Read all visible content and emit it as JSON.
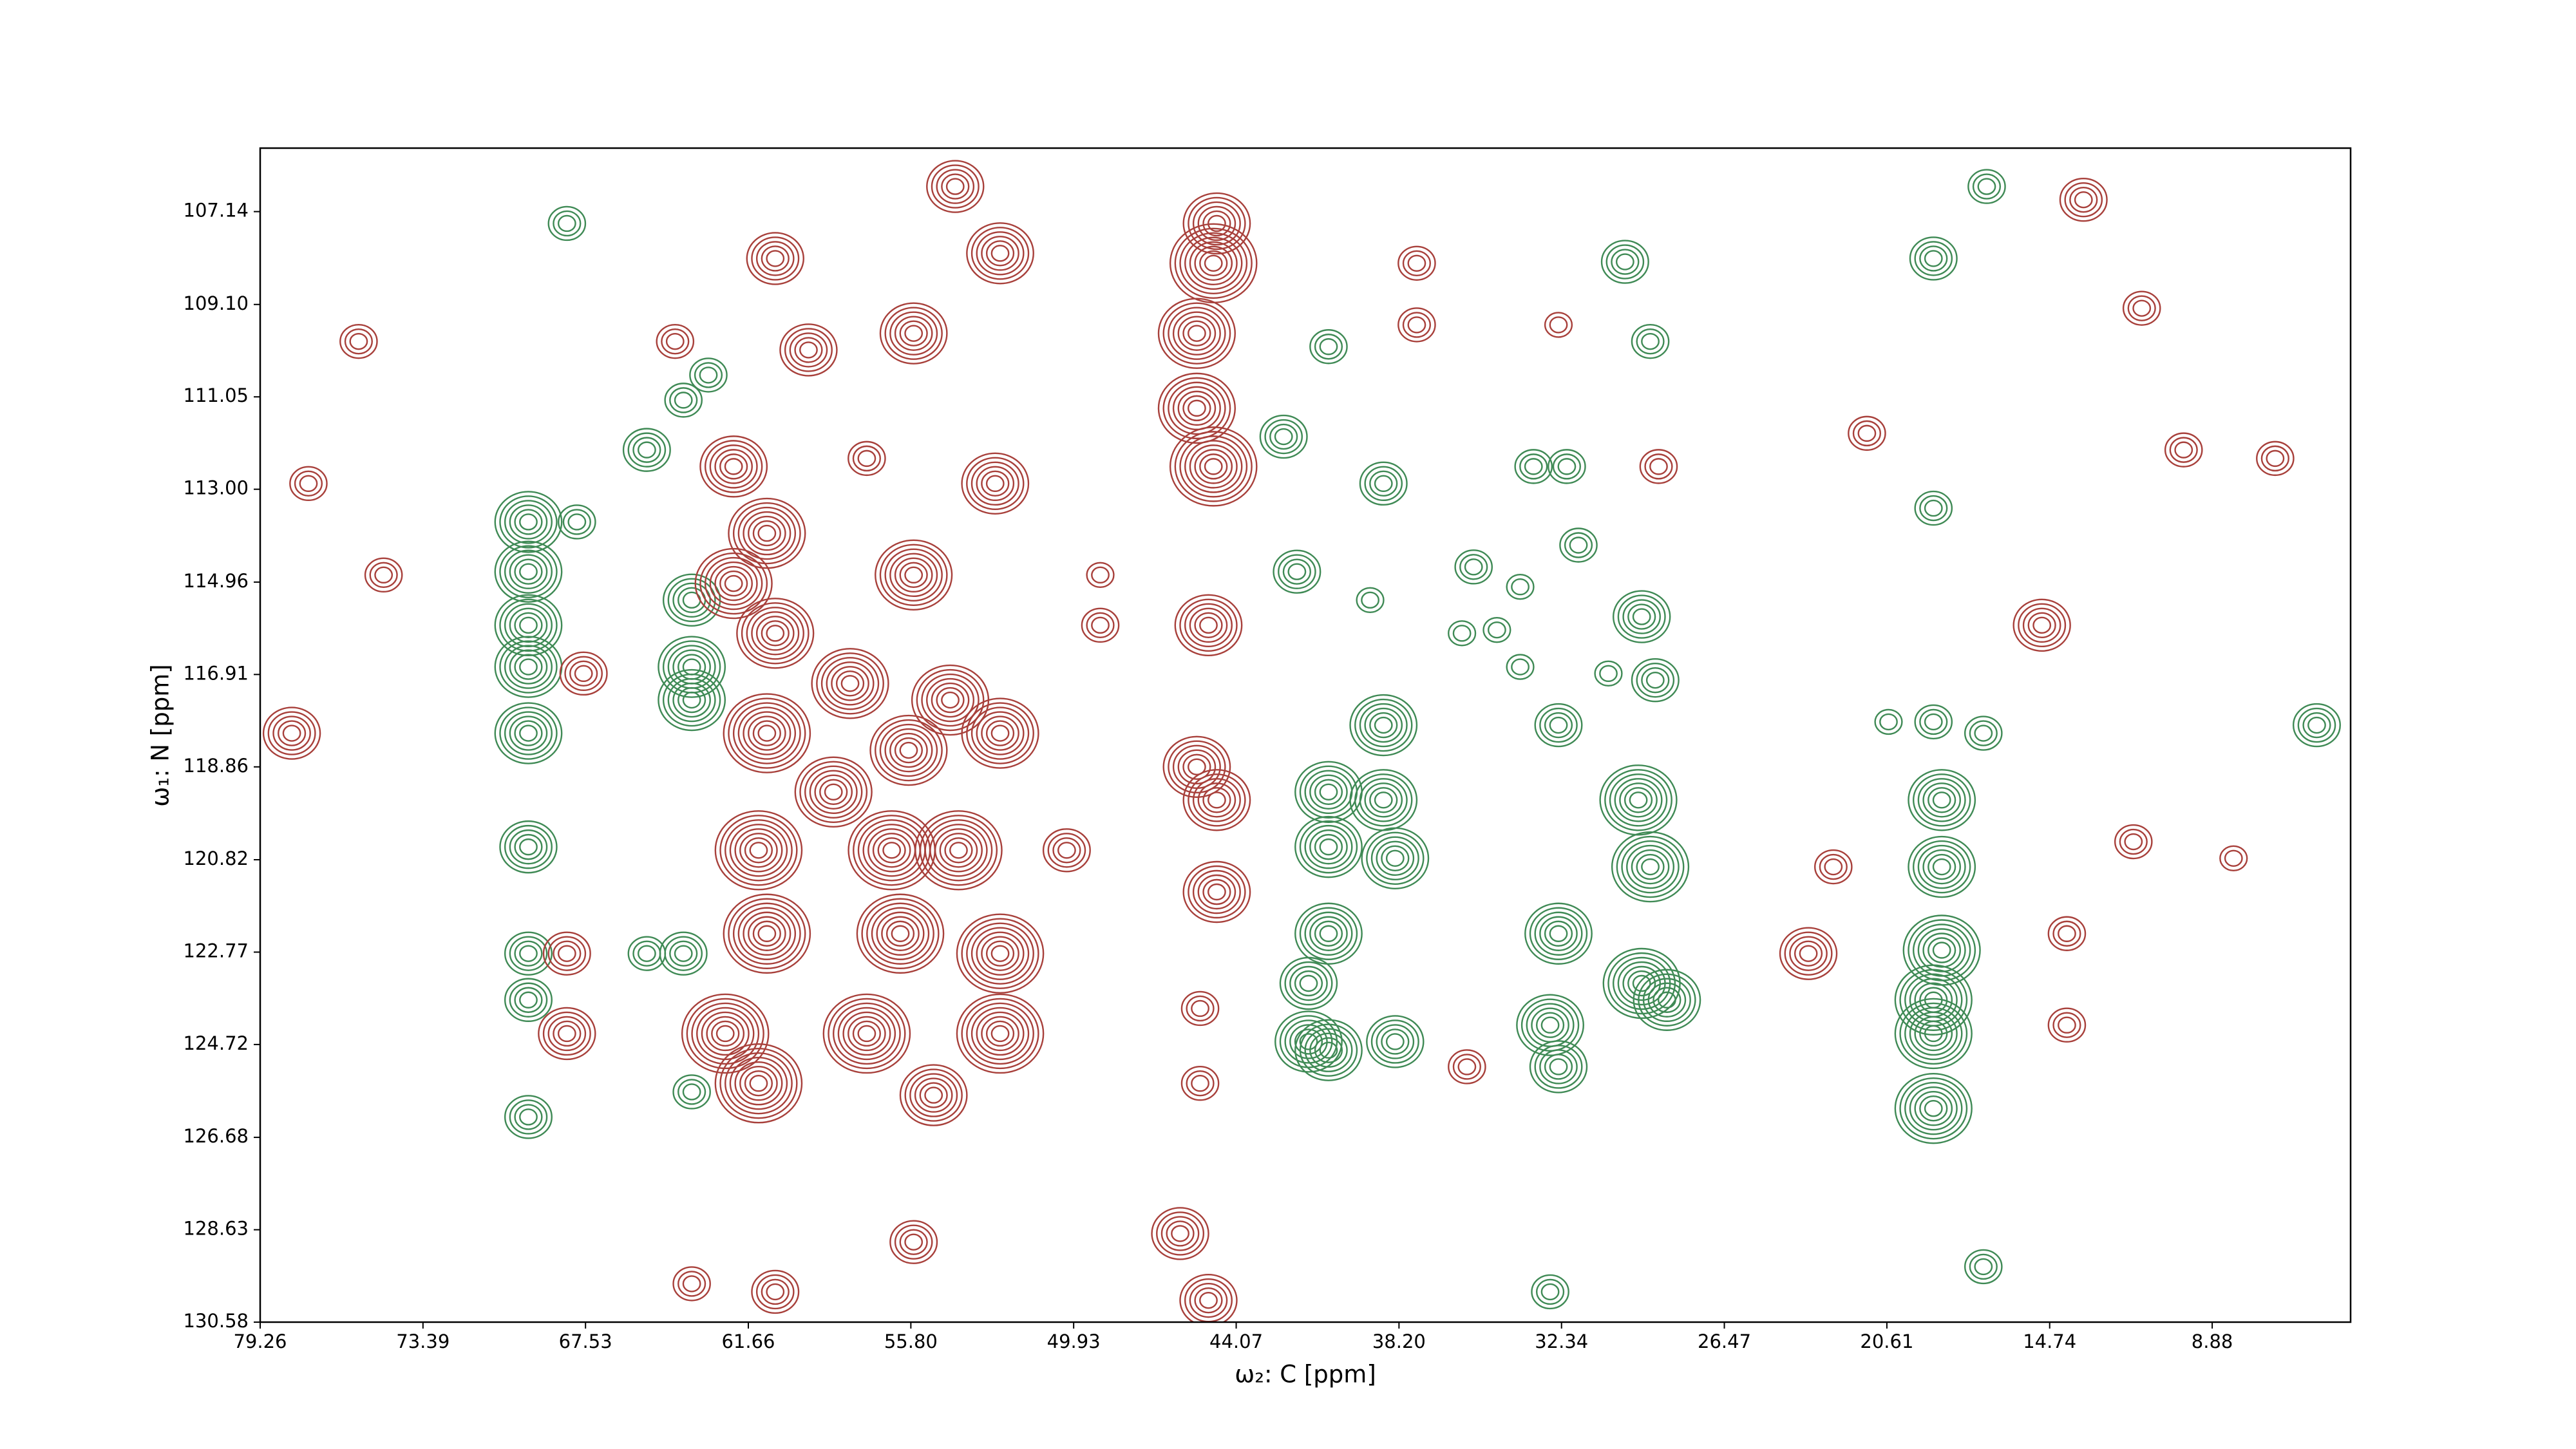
{
  "chart_data": {
    "type": "contour",
    "xlabel": "ω₂: C [ppm]",
    "ylabel": "ω₁: N [ppm]",
    "xlim": [
      79.26,
      3.89
    ],
    "ylim": [
      130.58,
      105.8
    ],
    "xticks": [
      79.26,
      73.39,
      67.53,
      61.66,
      {
        "value": 55.8,
        "label": "55.80"
      },
      49.93,
      44.07,
      {
        "value": 38.2,
        "label": "38.20"
      },
      32.34,
      26.47,
      20.61,
      14.74,
      8.88
    ],
    "yticks": [
      107.14,
      {
        "value": 109.1,
        "label": "109.10"
      },
      111.05,
      {
        "value": 113,
        "label": "113.00"
      },
      114.96,
      116.91,
      118.86,
      120.82,
      122.77,
      124.72,
      126.68,
      128.63,
      130.58
    ],
    "series": [
      {
        "color": "#3f8a55",
        "x": [
          69.59,
          69.59,
          69.59,
          69.59,
          69.59,
          67.84,
          69.59,
          69.59,
          69.59,
          69.59,
          63.1,
          64.0,
          65.32,
          63.7,
          63.7,
          63.7,
          65.32,
          64.0,
          63.7,
          42.36,
          40.74,
          38.76,
          41.88,
          35.51,
          33.83,
          32.15,
          33.35,
          31.73,
          29.14,
          30.05,
          29.45,
          28.96,
          32.45,
          40.74,
          40.74,
          40.74,
          41.46,
          38.76,
          38.76,
          38.34,
          29.57,
          29.14,
          29.45,
          28.54,
          32.45,
          32.75,
          32.45,
          18.93,
          18.93,
          18.63,
          18.63,
          18.63,
          18.93,
          18.93,
          18.93,
          17.01,
          20.55,
          18.93,
          17.13,
          17.13,
          41.46,
          40.74,
          38.34,
          32.75,
          39.24,
          35.93,
          34.67,
          30.65,
          33.83,
          68.2,
          5.11
        ],
        "y": [
          113.69,
          114.74,
          115.87,
          116.75,
          118.15,
          113.69,
          120.55,
          122.8,
          123.78,
          126.25,
          110.59,
          111.12,
          112.17,
          115.34,
          116.75,
          117.45,
          122.8,
          122.8,
          125.72,
          111.89,
          109.99,
          112.88,
          114.74,
          114.64,
          115.06,
          112.52,
          112.52,
          114.18,
          109.88,
          108.2,
          115.69,
          117.03,
          117.98,
          119.39,
          120.55,
          122.38,
          123.43,
          117.98,
          119.56,
          120.79,
          119.56,
          120.97,
          123.43,
          123.78,
          122.38,
          124.31,
          125.19,
          108.13,
          113.4,
          119.56,
          120.97,
          122.73,
          123.78,
          124.49,
          126.07,
          106.61,
          117.91,
          117.91,
          118.15,
          129.41,
          124.66,
          124.84,
          124.66,
          129.94,
          115.34,
          116.04,
          115.97,
          116.89,
          116.75,
          107.39,
          117.98
        ],
        "size": [
          6,
          6,
          6,
          6,
          6,
          3,
          5,
          4,
          4,
          4,
          3,
          3,
          4,
          5,
          6,
          6,
          3,
          4,
          3,
          4,
          3,
          4,
          4,
          3,
          2,
          3,
          3,
          3,
          3,
          4,
          5,
          4,
          4,
          6,
          6,
          6,
          5,
          6,
          6,
          6,
          7,
          7,
          7,
          6,
          6,
          6,
          5,
          4,
          3,
          6,
          6,
          7,
          7,
          7,
          7,
          3,
          2,
          3,
          3,
          3,
          6,
          6,
          5,
          3,
          2,
          2,
          2,
          2,
          2,
          3,
          4
        ]
      },
      {
        "color": "#a8403b",
        "x": [
          44.77,
          44.89,
          45.49,
          45.49,
          44.89,
          45.07,
          45.49,
          44.77,
          44.77,
          46.09,
          45.07,
          54.2,
          52.58,
          55.7,
          59.49,
          60.69,
          57.39,
          52.76,
          62.19,
          60.99,
          62.19,
          60.69,
          55.7,
          57.99,
          60.99,
          58.59,
          55.88,
          54.38,
          52.58,
          56.49,
          54.08,
          61.29,
          60.99,
          62.49,
          61.29,
          56.18,
          57.39,
          52.58,
          52.58,
          54.98,
          50.18,
          68.2,
          68.2,
          67.6,
          77.52,
          74.81,
          78.12,
          75.71,
          48.97,
          48.97,
          37.56,
          28.84,
          15.02,
          13.52,
          6.61,
          9.91,
          23.44,
          21.33,
          22.54,
          11.72,
          14.12,
          14.12,
          55.7,
          60.69,
          63.7,
          64.3,
          37.56,
          32.45,
          35.75,
          45.37,
          45.37,
          8.11,
          11.42
        ],
        "y": [
          107.39,
          108.23,
          109.71,
          111.29,
          112.52,
          115.87,
          118.86,
          119.56,
          121.5,
          128.71,
          130.12,
          106.61,
          108.02,
          109.71,
          110.06,
          108.13,
          112.35,
          112.88,
          112.52,
          113.93,
          114.99,
          116.04,
          114.81,
          117.1,
          118.15,
          119.39,
          118.51,
          117.45,
          118.15,
          120.62,
          120.62,
          120.62,
          122.38,
          124.49,
          125.54,
          122.38,
          124.49,
          122.8,
          124.49,
          125.79,
          120.62,
          124.49,
          122.8,
          116.89,
          112.88,
          114.81,
          118.15,
          109.88,
          115.87,
          114.81,
          108.23,
          112.52,
          115.87,
          106.89,
          112.35,
          112.17,
          122.8,
          111.82,
          120.97,
          120.44,
          122.38,
          124.31,
          128.89,
          129.94,
          129.77,
          109.88,
          109.53,
          109.53,
          125.19,
          125.54,
          123.96,
          120.79,
          109.18
        ],
        "size": [
          6,
          8,
          7,
          7,
          8,
          6,
          6,
          6,
          6,
          5,
          5,
          5,
          6,
          6,
          5,
          5,
          3,
          6,
          6,
          7,
          7,
          7,
          7,
          7,
          8,
          7,
          7,
          7,
          7,
          8,
          8,
          8,
          8,
          8,
          8,
          8,
          8,
          8,
          8,
          6,
          4,
          5,
          4,
          4,
          3,
          3,
          5,
          3,
          3,
          2,
          3,
          3,
          5,
          4,
          3,
          3,
          5,
          3,
          3,
          3,
          3,
          3,
          4,
          4,
          3,
          3,
          3,
          2,
          3,
          3,
          3,
          2,
          3
        ]
      }
    ]
  }
}
